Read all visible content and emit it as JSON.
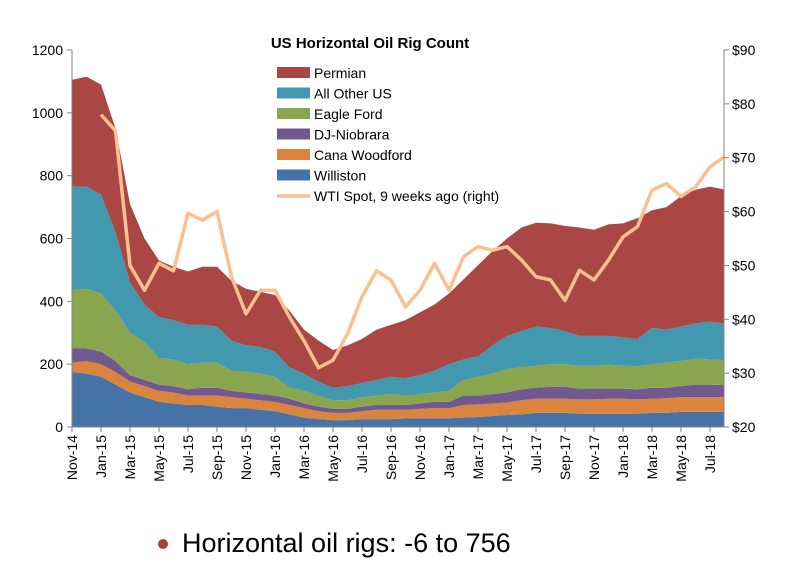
{
  "chart_data": {
    "type": "area",
    "stacked": true,
    "title": "US Horizontal Oil Rig Count",
    "xlabel": "",
    "ylabel": "",
    "y2label": "",
    "ylim": [
      0,
      1200
    ],
    "y2lim": [
      20,
      90
    ],
    "yticks": [
      "0",
      "200",
      "400",
      "600",
      "800",
      "1000",
      "1200"
    ],
    "y2ticks": [
      "$20",
      "$30",
      "$40",
      "$50",
      "$60",
      "$70",
      "$80",
      "$90"
    ],
    "grid": false,
    "legend_position": "top-center",
    "x": [
      "Nov-14",
      "Dec-14",
      "Jan-15",
      "Feb-15",
      "Mar-15",
      "Apr-15",
      "May-15",
      "Jun-15",
      "Jul-15",
      "Aug-15",
      "Sep-15",
      "Oct-15",
      "Nov-15",
      "Dec-15",
      "Jan-16",
      "Feb-16",
      "Mar-16",
      "Apr-16",
      "May-16",
      "Jun-16",
      "Jul-16",
      "Aug-16",
      "Sep-16",
      "Oct-16",
      "Nov-16",
      "Dec-16",
      "Jan-17",
      "Feb-17",
      "Mar-17",
      "Apr-17",
      "May-17",
      "Jun-17",
      "Jul-17",
      "Aug-17",
      "Sep-17",
      "Oct-17",
      "Nov-17",
      "Dec-17",
      "Jan-18",
      "Feb-18",
      "Mar-18",
      "Apr-18",
      "May-18",
      "Jun-18",
      "Jul-18",
      "Aug-18"
    ],
    "xticks": [
      "Nov-14",
      "Jan-15",
      "Mar-15",
      "May-15",
      "Jul-15",
      "Sep-15",
      "Nov-15",
      "Jan-16",
      "Mar-16",
      "May-16",
      "Jul-16",
      "Sep-16",
      "Nov-16",
      "Jan-17",
      "Mar-17",
      "May-17",
      "Jul-17",
      "Sep-17",
      "Nov-17",
      "Jan-18",
      "Mar-18",
      "May-18",
      "Jul-18"
    ],
    "series": [
      {
        "name": "Williston",
        "color": "#4572a7",
        "values": [
          175,
          170,
          160,
          135,
          110,
          95,
          80,
          75,
          70,
          70,
          65,
          60,
          60,
          55,
          50,
          40,
          30,
          25,
          22,
          22,
          25,
          25,
          25,
          27,
          28,
          28,
          28,
          30,
          32,
          35,
          38,
          40,
          45,
          45,
          45,
          42,
          42,
          42,
          42,
          42,
          45,
          45,
          48,
          48,
          48,
          48
        ]
      },
      {
        "name": "Cana Woodford",
        "color": "#db843d",
        "values": [
          30,
          40,
          40,
          40,
          35,
          35,
          35,
          35,
          30,
          30,
          35,
          35,
          30,
          30,
          30,
          30,
          30,
          25,
          23,
          23,
          25,
          30,
          30,
          28,
          30,
          32,
          32,
          40,
          40,
          40,
          40,
          45,
          45,
          45,
          45,
          46,
          46,
          48,
          48,
          46,
          45,
          47,
          47,
          47,
          47,
          47
        ]
      },
      {
        "name": "DJ-Niobrara",
        "color": "#71588f",
        "values": [
          45,
          40,
          40,
          35,
          20,
          20,
          20,
          20,
          20,
          25,
          25,
          20,
          20,
          20,
          20,
          20,
          15,
          15,
          13,
          13,
          15,
          15,
          15,
          15,
          17,
          20,
          20,
          30,
          28,
          30,
          32,
          35,
          35,
          38,
          38,
          34,
          34,
          32,
          32,
          32,
          35,
          33,
          35,
          40,
          40,
          38
        ]
      },
      {
        "name": "Eagle Ford",
        "color": "#89a54e",
        "values": [
          185,
          190,
          185,
          160,
          135,
          120,
          85,
          85,
          80,
          80,
          80,
          65,
          65,
          65,
          60,
          35,
          40,
          35,
          27,
          27,
          30,
          30,
          35,
          30,
          30,
          30,
          35,
          50,
          60,
          65,
          75,
          70,
          70,
          72,
          72,
          73,
          73,
          76,
          73,
          73,
          75,
          80,
          80,
          83,
          80,
          80
        ]
      },
      {
        "name": "All Other US",
        "color": "#4198af",
        "values": [
          330,
          325,
          315,
          250,
          160,
          120,
          130,
          125,
          125,
          120,
          115,
          95,
          85,
          85,
          80,
          65,
          55,
          45,
          40,
          45,
          45,
          50,
          55,
          55,
          60,
          70,
          85,
          65,
          65,
          90,
          105,
          115,
          125,
          115,
          105,
          95,
          95,
          92,
          90,
          87,
          115,
          105,
          110,
          112,
          120,
          117
        ]
      },
      {
        "name": "Permian",
        "color": "#aa4643",
        "values": [
          340,
          350,
          350,
          330,
          250,
          210,
          180,
          170,
          170,
          185,
          190,
          190,
          180,
          175,
          180,
          180,
          140,
          130,
          120,
          130,
          140,
          160,
          165,
          185,
          200,
          210,
          225,
          255,
          290,
          300,
          310,
          330,
          330,
          333,
          335,
          345,
          338,
          355,
          363,
          385,
          375,
          390,
          415,
          425,
          430,
          426
        ]
      }
    ],
    "line_series": {
      "name": "WTI Spot, 9 weeks ago (right)",
      "axis": "right",
      "color": "#fac090",
      "values": [
        null,
        null,
        78,
        75,
        50,
        45.4,
        50.4,
        49,
        59.7,
        58.4,
        60,
        47.9,
        41,
        45.4,
        45.4,
        40.4,
        36,
        31,
        32.4,
        37.3,
        44.2,
        49,
        47.3,
        42.3,
        45.4,
        50.4,
        45.4,
        51.6,
        53.5,
        52.8,
        53.5,
        51,
        47.9,
        47.3,
        43.5,
        49.1,
        47.3,
        51,
        55.3,
        57.2,
        64,
        65.2,
        62.8,
        64.6,
        68.3,
        70.2
      ]
    }
  },
  "caption": "Horizontal oil rigs: -6 to 756"
}
